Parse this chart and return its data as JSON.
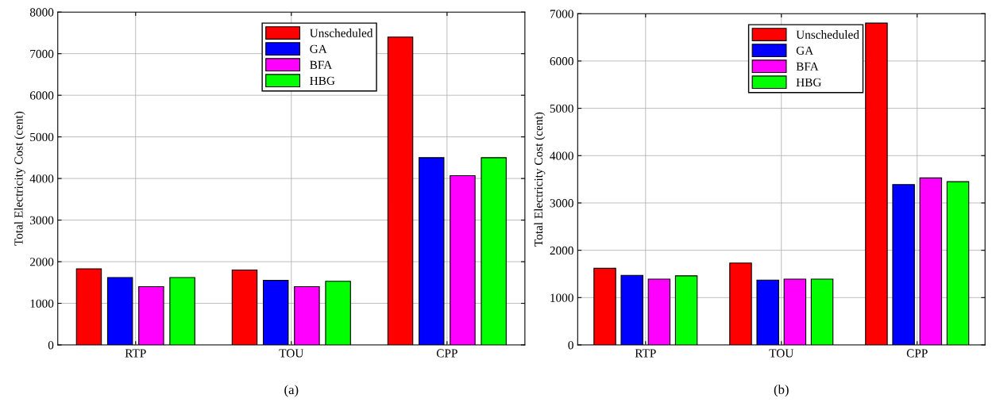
{
  "chart_data": [
    {
      "type": "bar",
      "ylabel": "Total Electricity Cost (cent)",
      "categories": [
        "RTP",
        "TOU",
        "CPP"
      ],
      "series": [
        {
          "name": "Unscheduled",
          "color": "#ff0000",
          "values": [
            1830,
            1800,
            7400
          ]
        },
        {
          "name": "GA",
          "color": "#0000ff",
          "values": [
            1620,
            1550,
            4500
          ]
        },
        {
          "name": "BFA",
          "color": "#ff00ff",
          "values": [
            1400,
            1400,
            4070
          ]
        },
        {
          "name": "HBG",
          "color": "#00ff00",
          "values": [
            1620,
            1530,
            4500
          ]
        }
      ],
      "ylim": [
        0,
        8000
      ],
      "yticks": [
        0,
        1000,
        2000,
        3000,
        4000,
        5000,
        6000,
        7000,
        8000
      ],
      "grid": true,
      "legend": "top",
      "annotations": [
        "(a)"
      ]
    },
    {
      "type": "bar",
      "ylabel": "Total Electricity Cost (cent)",
      "categories": [
        "RTP",
        "TOU",
        "CPP"
      ],
      "series": [
        {
          "name": "Unscheduled",
          "color": "#ff0000",
          "values": [
            1620,
            1730,
            6800
          ]
        },
        {
          "name": "GA",
          "color": "#0000ff",
          "values": [
            1470,
            1370,
            3390
          ]
        },
        {
          "name": "BFA",
          "color": "#ff00ff",
          "values": [
            1390,
            1390,
            3530
          ]
        },
        {
          "name": "HBG",
          "color": "#00ff00",
          "values": [
            1460,
            1390,
            3450
          ]
        }
      ],
      "ylim": [
        0,
        7000
      ],
      "yticks": [
        0,
        1000,
        2000,
        3000,
        4000,
        5000,
        6000,
        7000
      ],
      "grid": true,
      "legend": "top",
      "annotations": [
        "(b)"
      ]
    }
  ]
}
